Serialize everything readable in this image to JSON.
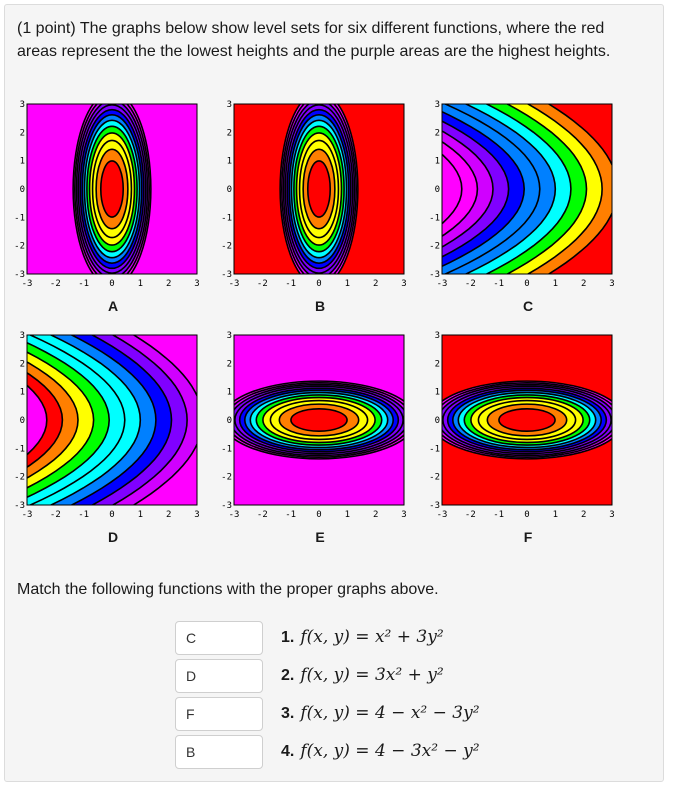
{
  "problem": {
    "text": "(1 point) The graphs below show level sets for six different functions, where the red areas represent the the lowest heights and the purple areas are the highest heights."
  },
  "palette": [
    "#ff0000",
    "#ff7f00",
    "#ffff00",
    "#00ff00",
    "#00ffff",
    "#0080ff",
    "#0000ff",
    "#8000ff",
    "#d000ff",
    "#ff00ff"
  ],
  "graphs": [
    {
      "label": "A",
      "type": "ellipse",
      "ax": 0.5,
      "ay": 0.08,
      "cx": 0,
      "cy": 0,
      "offset": 0
    },
    {
      "label": "B",
      "type": "ellipse",
      "ax": 0.5,
      "ay": 0.08,
      "cx": 0,
      "cy": 0,
      "offset": -8
    },
    {
      "label": "C",
      "type": "parab",
      "dir": 1,
      "cx": 3.2,
      "a": 0.25
    },
    {
      "label": "D",
      "type": "parab",
      "dir": -1,
      "cx": 3.2,
      "a": 0.25
    },
    {
      "label": "E",
      "type": "ellipse",
      "ax": 0.08,
      "ay": 0.5,
      "cx": 0,
      "cy": 0,
      "offset": 0
    },
    {
      "label": "F",
      "type": "ellipse",
      "ax": 0.08,
      "ay": 0.5,
      "cx": 0,
      "cy": 0,
      "offset": -8
    }
  ],
  "axis_ticks": [
    "-3",
    "-2",
    "-1",
    "0",
    "1",
    "2",
    "3"
  ],
  "match": {
    "title": "Match the following functions with the proper graphs above.",
    "rows": [
      {
        "num": "1.",
        "answer": "C",
        "f": "f(x, y) = x² + 3y²"
      },
      {
        "num": "2.",
        "answer": "D",
        "f": "f(x, y) = 3x² + y²"
      },
      {
        "num": "3.",
        "answer": "F",
        "f": "f(x, y) = 4 − x² − 3y²"
      },
      {
        "num": "4.",
        "answer": "B",
        "f": "f(x, y) = 4 − 3x² − y²"
      }
    ]
  }
}
